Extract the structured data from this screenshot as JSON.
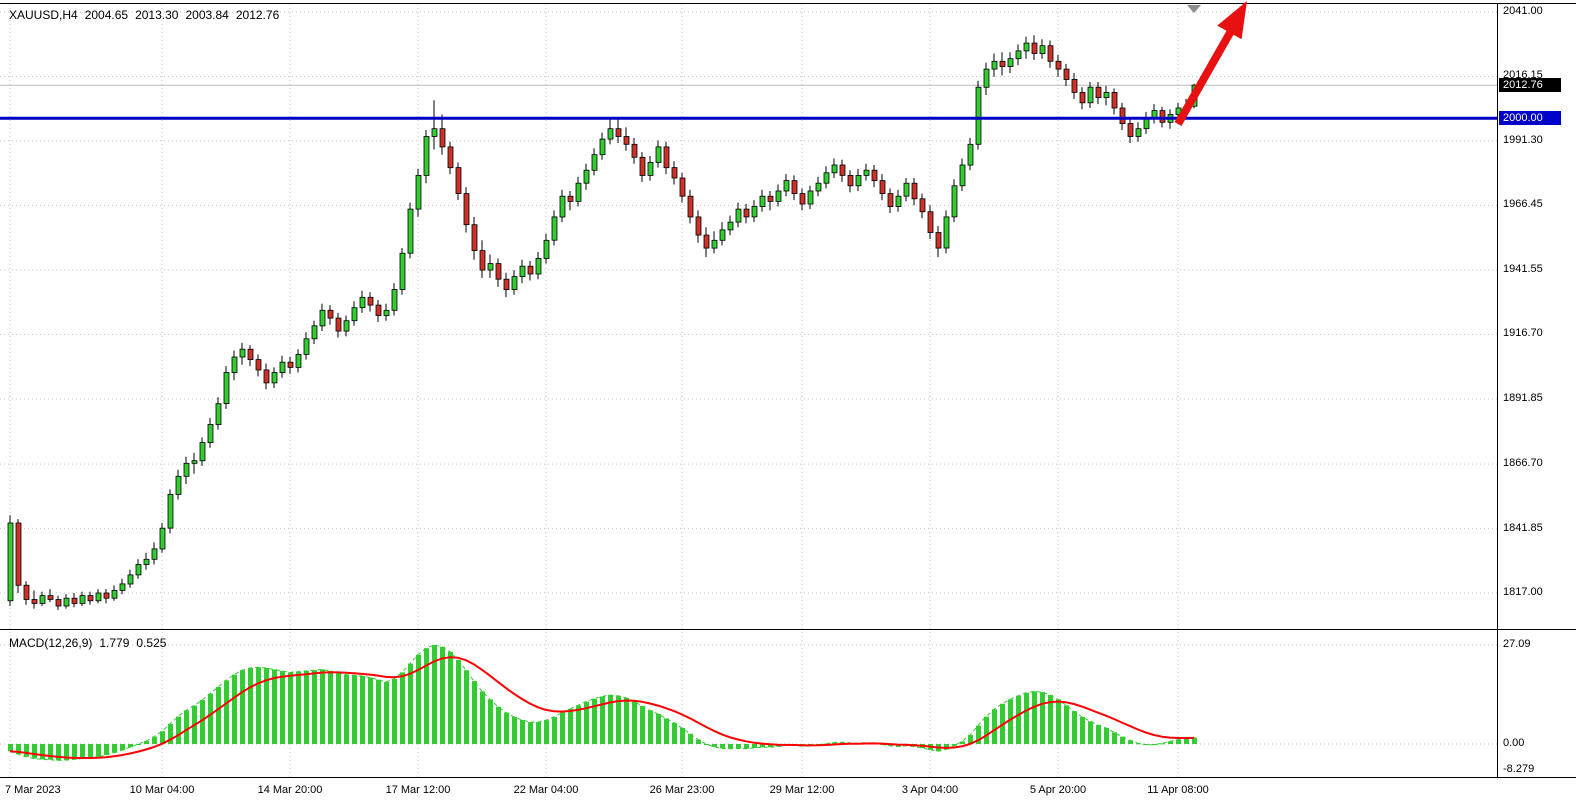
{
  "header": {
    "symbol": "XAUUSD,H4",
    "open": "2004.65",
    "high": "2013.30",
    "low": "2003.84",
    "close": "2012.76"
  },
  "macd_header": {
    "name": "MACD(12,26,9)",
    "value": "1.779",
    "signal": "0.525"
  },
  "badges": {
    "current_price": {
      "text": "2012.76",
      "price": 2012.76,
      "bg": "#000000",
      "fg": "#FFFFFF"
    },
    "level_line": {
      "text": "2000.00",
      "price": 2000.0,
      "bg": "#0000C8",
      "fg": "#FFFFFF"
    }
  },
  "colors": {
    "background": "#FFFFFF",
    "grid": "#C6C6C6",
    "bull": "#32CD32",
    "bear": "#CC3229",
    "candle_border": "#000000",
    "macd_histogram": "#33CC33",
    "macd_signal": "#FF0000",
    "hline": "#0000C8",
    "arrow": "#E81111",
    "bid_line": "#B9B9B9",
    "border": "#000000",
    "axis_text": "#000000",
    "shift_triangle": "#8C8C8C"
  },
  "chart_data": {
    "type": "candlestick",
    "symbol": "XAUUSD",
    "timeframe": "H4",
    "last_ohlc": {
      "open": 2004.65,
      "high": 2013.3,
      "low": 2003.84,
      "close": 2012.76
    },
    "y_ticks": [
      {
        "price": 2041.0,
        "label": "2041.00"
      },
      {
        "price": 2016.15,
        "label": "2016.15"
      },
      {
        "price": 1991.3,
        "label": "1991.30"
      },
      {
        "price": 1966.45,
        "label": "1966.45"
      },
      {
        "price": 1941.55,
        "label": "1941.55"
      },
      {
        "price": 1916.7,
        "label": "1916.70"
      },
      {
        "price": 1891.85,
        "label": "1891.85"
      },
      {
        "price": 1866.7,
        "label": "1866.70"
      },
      {
        "price": 1841.85,
        "label": "1841.85"
      },
      {
        "price": 1817.0,
        "label": "1817.00"
      }
    ],
    "x_ticks": [
      {
        "bar": 0,
        "label": "7 Mar 2023"
      },
      {
        "bar": 19,
        "label": "10 Mar 04:00"
      },
      {
        "bar": 35,
        "label": "14 Mar 20:00"
      },
      {
        "bar": 51,
        "label": "17 Mar 12:00"
      },
      {
        "bar": 67,
        "label": "22 Mar 04:00"
      },
      {
        "bar": 84,
        "label": "26 Mar 23:00"
      },
      {
        "bar": 99,
        "label": "29 Mar 12:00"
      },
      {
        "bar": 115,
        "label": "3 Apr 04:00"
      },
      {
        "bar": 131,
        "label": "5 Apr 20:00"
      },
      {
        "bar": 146,
        "label": "11 Apr 08:00"
      }
    ],
    "annotations": {
      "horizontal_line_price": 2000.0,
      "current_price_line": 2012.76,
      "trend_arrow": "up-right"
    },
    "candles": [
      [
        1814.0,
        1847.0,
        1812.0,
        1844.0
      ],
      [
        1844.0,
        1845.5,
        1817.0,
        1820.0
      ],
      [
        1820.0,
        1821.5,
        1812.5,
        1814.5
      ],
      [
        1814.5,
        1818.0,
        1811.0,
        1813.0
      ],
      [
        1813.0,
        1817.5,
        1812.0,
        1816.0
      ],
      [
        1816.0,
        1818.5,
        1813.5,
        1814.5
      ],
      [
        1814.5,
        1816.0,
        1810.5,
        1812.0
      ],
      [
        1812.0,
        1816.5,
        1811.0,
        1815.0
      ],
      [
        1815.0,
        1817.0,
        1811.5,
        1813.0
      ],
      [
        1813.0,
        1817.5,
        1812.0,
        1816.0
      ],
      [
        1816.0,
        1817.5,
        1812.5,
        1814.0
      ],
      [
        1814.0,
        1818.5,
        1813.0,
        1817.0
      ],
      [
        1817.0,
        1818.5,
        1813.0,
        1815.0
      ],
      [
        1815.0,
        1820.0,
        1814.0,
        1818.0
      ],
      [
        1818.0,
        1822.5,
        1816.5,
        1820.5
      ],
      [
        1820.5,
        1826.0,
        1819.0,
        1824.0
      ],
      [
        1824.0,
        1830.0,
        1822.5,
        1828.0
      ],
      [
        1828.0,
        1832.5,
        1826.0,
        1830.0
      ],
      [
        1830.0,
        1836.5,
        1828.0,
        1834.0
      ],
      [
        1834.0,
        1844.0,
        1832.5,
        1842.0
      ],
      [
        1842.0,
        1857.0,
        1840.0,
        1855.0
      ],
      [
        1855.0,
        1864.5,
        1853.0,
        1862.0
      ],
      [
        1862.0,
        1869.5,
        1859.0,
        1867.0
      ],
      [
        1867.0,
        1871.0,
        1863.0,
        1868.0
      ],
      [
        1868.0,
        1877.0,
        1866.0,
        1875.0
      ],
      [
        1875.0,
        1884.5,
        1873.0,
        1882.0
      ],
      [
        1882.0,
        1892.5,
        1880.0,
        1890.0
      ],
      [
        1890.0,
        1904.5,
        1888.0,
        1902.0
      ],
      [
        1902.0,
        1910.5,
        1899.0,
        1908.0
      ],
      [
        1908.0,
        1913.5,
        1905.0,
        1911.0
      ],
      [
        1911.0,
        1912.5,
        1904.5,
        1907.0
      ],
      [
        1907.0,
        1909.0,
        1900.5,
        1903.0
      ],
      [
        1903.0,
        1905.5,
        1895.5,
        1898.0
      ],
      [
        1898.0,
        1904.0,
        1896.0,
        1902.0
      ],
      [
        1902.0,
        1908.5,
        1900.0,
        1906.0
      ],
      [
        1906.0,
        1908.0,
        1901.5,
        1904.0
      ],
      [
        1904.0,
        1911.0,
        1902.0,
        1909.0
      ],
      [
        1909.0,
        1917.5,
        1907.0,
        1915.0
      ],
      [
        1915.0,
        1922.0,
        1913.0,
        1920.0
      ],
      [
        1920.0,
        1928.5,
        1918.0,
        1926.0
      ],
      [
        1926.0,
        1928.0,
        1920.5,
        1923.0
      ],
      [
        1923.0,
        1925.0,
        1915.5,
        1918.0
      ],
      [
        1918.0,
        1924.0,
        1916.0,
        1922.0
      ],
      [
        1922.0,
        1929.5,
        1920.0,
        1927.0
      ],
      [
        1927.0,
        1933.5,
        1925.0,
        1931.0
      ],
      [
        1931.0,
        1933.0,
        1925.5,
        1928.0
      ],
      [
        1928.0,
        1930.0,
        1921.5,
        1924.0
      ],
      [
        1924.0,
        1928.5,
        1922.0,
        1926.0
      ],
      [
        1926.0,
        1936.5,
        1924.0,
        1934.0
      ],
      [
        1934.0,
        1950.0,
        1932.0,
        1948.0
      ],
      [
        1948.0,
        1967.5,
        1946.0,
        1965.0
      ],
      [
        1965.0,
        1980.5,
        1962.0,
        1978.0
      ],
      [
        1978.0,
        1995.5,
        1975.0,
        1993.0
      ],
      [
        1993.0,
        2007.0,
        1988.0,
        1996.0
      ],
      [
        1996.0,
        2001.5,
        1986.0,
        1989.0
      ],
      [
        1989.0,
        1991.0,
        1978.5,
        1981.0
      ],
      [
        1981.0,
        1983.0,
        1968.5,
        1971.0
      ],
      [
        1971.0,
        1973.5,
        1956.0,
        1959.0
      ],
      [
        1959.0,
        1962.0,
        1945.5,
        1949.0
      ],
      [
        1949.0,
        1953.0,
        1938.5,
        1941.5
      ],
      [
        1941.5,
        1947.5,
        1938.5,
        1944.0
      ],
      [
        1944.0,
        1946.0,
        1935.0,
        1938.0
      ],
      [
        1938.0,
        1940.5,
        1931.0,
        1934.0
      ],
      [
        1934.0,
        1941.5,
        1932.0,
        1939.0
      ],
      [
        1939.0,
        1945.5,
        1936.5,
        1943.0
      ],
      [
        1943.0,
        1945.0,
        1937.5,
        1940.0
      ],
      [
        1940.0,
        1948.5,
        1938.0,
        1946.0
      ],
      [
        1946.0,
        1955.5,
        1944.0,
        1953.0
      ],
      [
        1953.0,
        1964.5,
        1951.0,
        1962.0
      ],
      [
        1962.0,
        1972.5,
        1960.0,
        1970.0
      ],
      [
        1970.0,
        1972.0,
        1964.5,
        1968.0
      ],
      [
        1968.0,
        1977.5,
        1966.0,
        1975.0
      ],
      [
        1975.0,
        1982.5,
        1972.5,
        1980.0
      ],
      [
        1980.0,
        1988.5,
        1978.0,
        1986.0
      ],
      [
        1986.0,
        1994.5,
        1984.0,
        1992.0
      ],
      [
        1992.0,
        2000.0,
        1990.0,
        1996.0
      ],
      [
        1996.0,
        1999.5,
        1990.5,
        1993.0
      ],
      [
        1993.0,
        1996.5,
        1987.5,
        1990.0
      ],
      [
        1990.0,
        1992.5,
        1982.5,
        1985.0
      ],
      [
        1985.0,
        1987.0,
        1975.5,
        1978.0
      ],
      [
        1978.0,
        1985.5,
        1976.0,
        1983.0
      ],
      [
        1983.0,
        1991.5,
        1981.0,
        1989.0
      ],
      [
        1989.0,
        1991.0,
        1978.5,
        1981.0
      ],
      [
        1981.0,
        1983.5,
        1974.5,
        1977.0
      ],
      [
        1977.0,
        1979.0,
        1967.5,
        1970.0
      ],
      [
        1970.0,
        1972.5,
        1959.5,
        1962.0
      ],
      [
        1962.0,
        1964.5,
        1952.0,
        1955.0
      ],
      [
        1955.0,
        1958.0,
        1946.5,
        1950.0
      ],
      [
        1950.0,
        1956.5,
        1948.0,
        1953.0
      ],
      [
        1953.0,
        1960.0,
        1951.0,
        1957.0
      ],
      [
        1957.0,
        1962.5,
        1955.0,
        1960.0
      ],
      [
        1960.0,
        1967.5,
        1958.0,
        1965.0
      ],
      [
        1965.0,
        1967.0,
        1959.5,
        1962.0
      ],
      [
        1962.0,
        1968.5,
        1960.0,
        1966.0
      ],
      [
        1966.0,
        1972.5,
        1964.0,
        1970.0
      ],
      [
        1970.0,
        1972.0,
        1964.5,
        1968.0
      ],
      [
        1968.0,
        1974.5,
        1966.0,
        1972.0
      ],
      [
        1972.0,
        1978.5,
        1970.0,
        1976.0
      ],
      [
        1976.0,
        1978.0,
        1968.5,
        1971.0
      ],
      [
        1971.0,
        1973.0,
        1964.5,
        1967.0
      ],
      [
        1967.0,
        1974.0,
        1965.0,
        1972.0
      ],
      [
        1972.0,
        1977.5,
        1970.0,
        1975.0
      ],
      [
        1975.0,
        1981.5,
        1973.0,
        1979.0
      ],
      [
        1979.0,
        1984.5,
        1977.0,
        1982.0
      ],
      [
        1982.0,
        1984.0,
        1975.5,
        1978.0
      ],
      [
        1978.0,
        1980.0,
        1971.5,
        1974.0
      ],
      [
        1974.0,
        1980.5,
        1972.0,
        1978.0
      ],
      [
        1978.0,
        1982.5,
        1976.0,
        1980.0
      ],
      [
        1980.0,
        1982.0,
        1973.5,
        1976.0
      ],
      [
        1976.0,
        1978.5,
        1968.5,
        1971.0
      ],
      [
        1971.0,
        1973.0,
        1963.5,
        1966.0
      ],
      [
        1966.0,
        1972.5,
        1964.0,
        1970.0
      ],
      [
        1970.0,
        1977.0,
        1968.0,
        1975.0
      ],
      [
        1975.0,
        1977.0,
        1966.5,
        1969.0
      ],
      [
        1969.0,
        1971.0,
        1961.5,
        1964.0
      ],
      [
        1964.0,
        1966.5,
        1953.5,
        1956.0
      ],
      [
        1956.0,
        1958.5,
        1946.5,
        1950.0
      ],
      [
        1950.0,
        1964.5,
        1948.0,
        1962.0
      ],
      [
        1962.0,
        1976.5,
        1960.0,
        1974.0
      ],
      [
        1974.0,
        1984.5,
        1972.0,
        1982.0
      ],
      [
        1982.0,
        1992.5,
        1980.0,
        1990.0
      ],
      [
        1990.0,
        2014.5,
        1988.0,
        2012.0
      ],
      [
        2012.0,
        2021.5,
        2009.0,
        2019.0
      ],
      [
        2019.0,
        2025.0,
        2016.0,
        2022.0
      ],
      [
        2022.0,
        2025.5,
        2016.5,
        2020.0
      ],
      [
        2020.0,
        2025.5,
        2017.5,
        2023.0
      ],
      [
        2023.0,
        2028.5,
        2020.5,
        2026.0
      ],
      [
        2026.0,
        2031.5,
        2023.0,
        2029.0
      ],
      [
        2029.0,
        2032.0,
        2022.5,
        2025.0
      ],
      [
        2025.0,
        2030.5,
        2023.0,
        2028.0
      ],
      [
        2028.0,
        2030.0,
        2019.5,
        2022.0
      ],
      [
        2022.0,
        2024.5,
        2016.0,
        2019.0
      ],
      [
        2019.0,
        2021.0,
        2012.5,
        2015.0
      ],
      [
        2015.0,
        2017.5,
        2007.5,
        2010.0
      ],
      [
        2010.0,
        2012.0,
        2003.5,
        2006.0
      ],
      [
        2006.0,
        2014.0,
        2004.0,
        2012.0
      ],
      [
        2012.0,
        2014.0,
        2005.5,
        2008.0
      ],
      [
        2008.0,
        2012.5,
        2005.0,
        2010.0
      ],
      [
        2010.0,
        2011.5,
        2001.5,
        2004.0
      ],
      [
        2004.0,
        2006.0,
        1995.5,
        1998.0
      ],
      [
        1998.0,
        2000.5,
        1990.5,
        1993.0
      ],
      [
        1993.0,
        1998.5,
        1991.0,
        1996.0
      ],
      [
        1996.0,
        2002.5,
        1994.0,
        2000.0
      ],
      [
        2000.0,
        2005.5,
        1998.0,
        2003.0
      ],
      [
        2003.0,
        2004.5,
        1996.5,
        1998.5
      ],
      [
        1998.5,
        2003.5,
        1996.0,
        2001.5
      ],
      [
        2001.5,
        2006.0,
        1999.5,
        2004.0
      ],
      [
        2004.0,
        2007.5,
        2002.0,
        2004.65
      ],
      [
        2004.65,
        2013.3,
        2003.84,
        2012.76
      ]
    ],
    "macd": {
      "type": "histogram_with_signal",
      "params": [
        12,
        26,
        9
      ],
      "last_macd": 1.779,
      "last_signal": 0.525,
      "y_ticks": [
        {
          "value": 27.09,
          "label": "27.09"
        },
        {
          "value": 0,
          "label": "0.00"
        },
        {
          "value": -8.279,
          "label": "-8.279"
        }
      ],
      "histogram": [
        -2,
        -2.8,
        -3.5,
        -4,
        -4.2,
        -4.3,
        -4.5,
        -4.4,
        -4.2,
        -4,
        -3.8,
        -3.5,
        -3,
        -2.4,
        -1.7,
        -0.9,
        0,
        0.8,
        2,
        3.5,
        5.5,
        7.5,
        9.2,
        10.5,
        12,
        13.8,
        15.6,
        17.4,
        19,
        20.2,
        20.8,
        21,
        20.8,
        20.4,
        20,
        19.6,
        19.8,
        20,
        20.2,
        20.4,
        20,
        19.4,
        19,
        18.8,
        18.6,
        18.2,
        17.6,
        17,
        17.8,
        19.6,
        22,
        24.4,
        26.2,
        27.09,
        26.6,
        25.2,
        23,
        20.2,
        17.2,
        14.4,
        12.2,
        10.2,
        8.6,
        7.4,
        6.6,
        6,
        6,
        6.5,
        7.4,
        8.6,
        9.6,
        10.6,
        11.6,
        12.4,
        13,
        13.4,
        13.2,
        12.6,
        11.6,
        10.4,
        9.2,
        8.2,
        7,
        5.8,
        4.4,
        2.8,
        1.2,
        0,
        -0.8,
        -1.2,
        -1.3,
        -1.2,
        -1.3,
        -1.1,
        -0.9,
        -0.9,
        -0.7,
        -0.4,
        -0.4,
        -0.6,
        -0.5,
        -0.3,
        0.1,
        0.4,
        0.5,
        0.3,
        0.2,
        0.4,
        0.2,
        -0.1,
        -0.5,
        -0.7,
        -0.5,
        -0.7,
        -1.1,
        -1.6,
        -2,
        -1.5,
        -0.5,
        0.7,
        2.5,
        5,
        7.5,
        9.5,
        11,
        12.2,
        13.2,
        14,
        14.4,
        14.2,
        13.4,
        12.2,
        10.6,
        9,
        7.4,
        6.2,
        5.2,
        4.4,
        3.2,
        2,
        1,
        0.2,
        -0.2,
        -0.2,
        0.2,
        0.7,
        1.2,
        1.6,
        1.779
      ]
    }
  }
}
